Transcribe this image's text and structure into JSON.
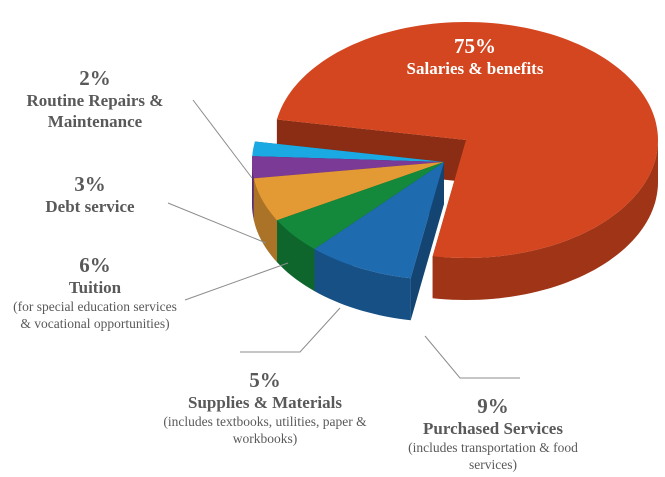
{
  "chart_data": {
    "type": "pie",
    "categories": [
      "Salaries & benefits",
      "Purchased Services",
      "Supplies & Materials",
      "Tuition",
      "Debt service",
      "Routine Repairs & Maintenance"
    ],
    "values": [
      75,
      9,
      5,
      6,
      3,
      2
    ],
    "value_labels": [
      "75%",
      "9%",
      "5%",
      "6%",
      "3%",
      "2%"
    ],
    "notes": [
      null,
      "(includes transportation & food services)",
      "(includes textbooks, utilities, paper & workbooks)",
      "(for special education services & vocational opportunities)",
      null,
      null
    ],
    "colors": [
      "#d4461f",
      "#1f6bb0",
      "#14893c",
      "#e39a34",
      "#7b3a96",
      "#1aa9e2"
    ]
  }
}
